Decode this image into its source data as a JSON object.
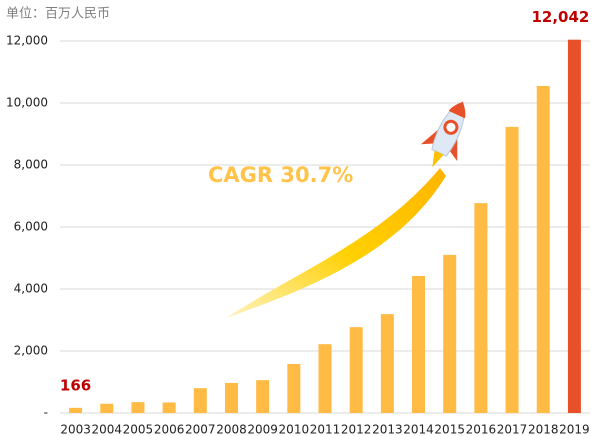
{
  "chart_data": {
    "type": "bar",
    "subtitle": "单位：百万人民币",
    "annotation": "CAGR 30.7%",
    "categories": [
      "2003",
      "2004",
      "2005",
      "2006",
      "2007",
      "2008",
      "2009",
      "2010",
      "2011",
      "2012",
      "2013",
      "2014",
      "2015",
      "2016",
      "2017",
      "2018",
      "2019"
    ],
    "values": [
      166,
      300,
      350,
      340,
      800,
      970,
      1060,
      1580,
      2220,
      2770,
      3190,
      4420,
      5100,
      6770,
      9230,
      10550,
      12042
    ],
    "value_labels": [
      "166",
      null,
      null,
      null,
      null,
      null,
      null,
      null,
      null,
      null,
      null,
      null,
      null,
      null,
      null,
      null,
      "12,042"
    ],
    "colors": [
      "#ffbb44",
      "#ffbb44",
      "#ffbb44",
      "#ffbb44",
      "#ffbb44",
      "#ffbb44",
      "#ffbb44",
      "#ffbb44",
      "#ffbb44",
      "#ffbb44",
      "#ffbb44",
      "#ffbb44",
      "#ffbb44",
      "#ffbb44",
      "#ffbb44",
      "#ffbb44",
      "#e8502a"
    ],
    "ylim": [
      0,
      12000
    ],
    "yticks": [
      {
        "value": 0,
        "label": "-"
      },
      {
        "value": 2000,
        "label": "2,000"
      },
      {
        "value": 4000,
        "label": "4,000"
      },
      {
        "value": 6000,
        "label": "6,000"
      },
      {
        "value": 8000,
        "label": "8,000"
      },
      {
        "value": 10000,
        "label": "10,000"
      },
      {
        "value": 12000,
        "label": "12,000"
      }
    ],
    "grid": true
  }
}
